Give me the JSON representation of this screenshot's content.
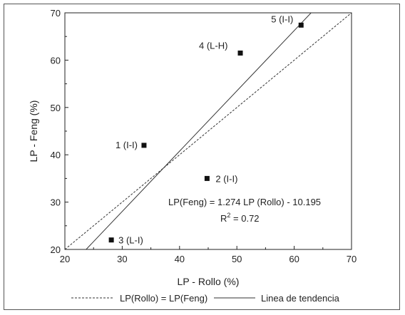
{
  "chart_data": {
    "type": "scatter",
    "xlabel": "LP - Rollo (%)",
    "ylabel": "LP - Feng (%)",
    "xlim": [
      20,
      70
    ],
    "ylim": [
      20,
      70
    ],
    "xticks": [
      20,
      30,
      40,
      50,
      60,
      70
    ],
    "yticks": [
      20,
      30,
      40,
      50,
      60,
      70
    ],
    "grid": false,
    "points": [
      {
        "label": "1 (I-I)",
        "x": 33.8,
        "y": 42.0
      },
      {
        "label": "2 (I-I)",
        "x": 44.8,
        "y": 35.0
      },
      {
        "label": "3 (L-I)",
        "x": 28.1,
        "y": 22.0
      },
      {
        "label": "4 (L-H)",
        "x": 50.6,
        "y": 61.5
      },
      {
        "label": "5 (I-I)",
        "x": 61.2,
        "y": 67.4
      }
    ],
    "lines": [
      {
        "name": "LP(Rollo) = LP(Feng)",
        "style": "dashed",
        "slope": 1.0,
        "intercept": 0.0
      },
      {
        "name": "Linea de tendencia",
        "style": "solid",
        "slope": 1.274,
        "intercept": -10.195
      }
    ],
    "annotation": {
      "equation": "LP(Feng) = 1.274 LP (Rollo) - 10.195",
      "r2_base": "R",
      "r2_sup": "2",
      "r2_value": " = 0.72"
    },
    "legend_position": "bottom"
  }
}
